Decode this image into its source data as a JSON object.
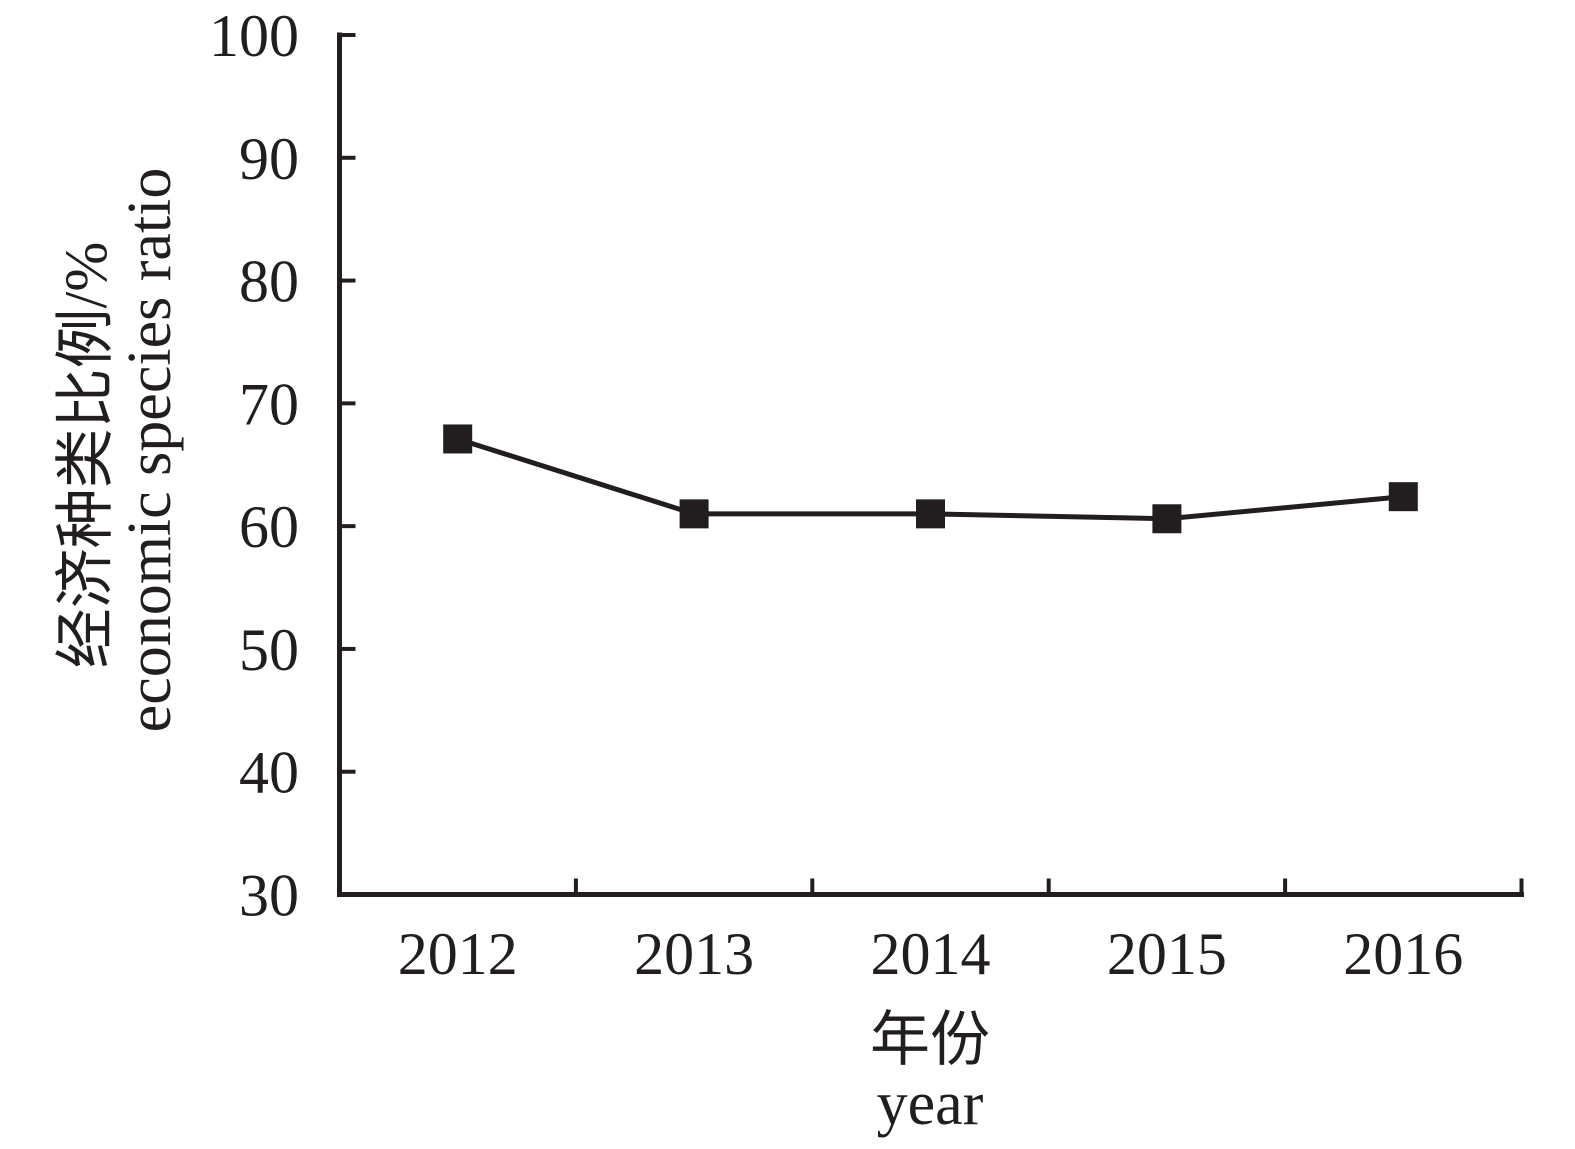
{
  "figure": {
    "background": "#FFFFFF"
  },
  "chart_data": {
    "type": "line",
    "title": "",
    "categories": [
      "2012",
      "2013",
      "2014",
      "2015",
      "2016"
    ],
    "series": [
      {
        "name": "economic species ratio",
        "values": [
          67.1,
          61.0,
          61.0,
          60.6,
          62.4
        ]
      }
    ],
    "xlabel_zh": "年份",
    "xlabel_en": "year",
    "ylabel_zh": "经济种类比例/%",
    "ylabel_en": "economic species ratio",
    "ylim": [
      30,
      100
    ],
    "yticks": [
      100,
      90,
      80,
      70,
      60,
      50,
      40,
      30
    ],
    "grid": false,
    "legend": "none",
    "marker": "square",
    "line_color": "#221E1F",
    "axis_color": "#221E1F",
    "tick_direction": "in"
  }
}
